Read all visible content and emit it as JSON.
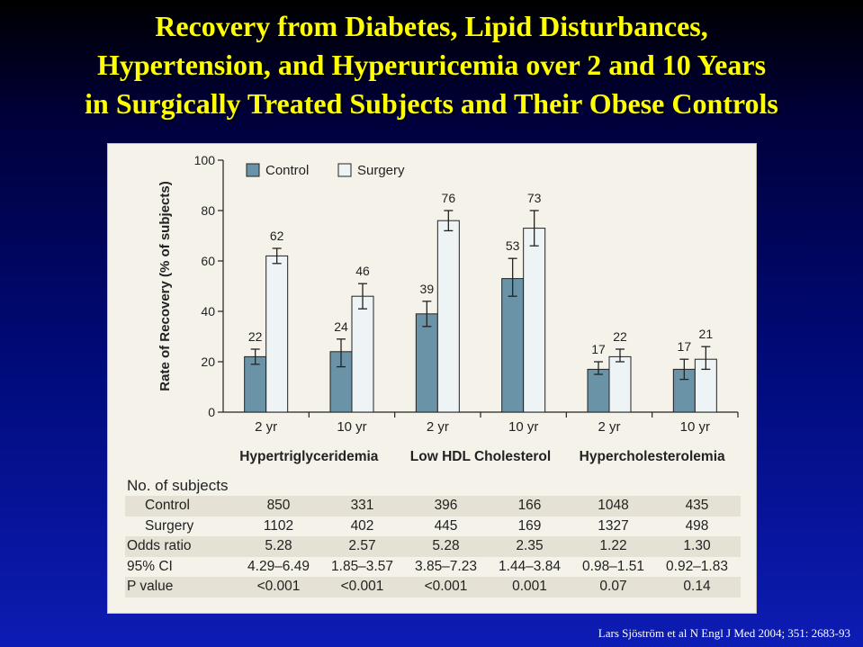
{
  "title_lines": [
    "Recovery from Diabetes, Lipid Disturbances,",
    "Hypertension, and Hyperuricemia over 2 and 10 Years",
    "in Surgically Treated Subjects and Their Obese Controls"
  ],
  "chart_data": {
    "type": "bar",
    "ylabel": "Rate of Recovery (% of subjects)",
    "ylim": [
      0,
      100
    ],
    "yticks": [
      0,
      20,
      40,
      60,
      80,
      100
    ],
    "grid": false,
    "legend_position": "top-left",
    "colors": {
      "control": "#6a93a8",
      "surgery": "#eef3f5",
      "stroke": "#222222"
    },
    "groups": [
      "Hypertriglyceridemia",
      "Low HDL Cholesterol",
      "Hypercholesterolemia"
    ],
    "categories": [
      "2 yr",
      "10 yr",
      "2 yr",
      "10 yr",
      "2 yr",
      "10 yr"
    ],
    "series": [
      {
        "name": "Control",
        "values": [
          22,
          24,
          39,
          53,
          17,
          17
        ],
        "err_low": [
          19,
          18,
          34,
          46,
          15,
          13
        ],
        "err_high": [
          25,
          29,
          44,
          61,
          20,
          21
        ]
      },
      {
        "name": "Surgery",
        "values": [
          62,
          46,
          76,
          73,
          22,
          21
        ],
        "err_low": [
          59,
          41,
          72,
          66,
          20,
          17
        ],
        "err_high": [
          65,
          51,
          80,
          80,
          25,
          26
        ]
      }
    ]
  },
  "table": {
    "header": "No. of subjects",
    "rows": [
      {
        "label": "Control",
        "indent": true,
        "values": [
          "850",
          "331",
          "396",
          "166",
          "1048",
          "435"
        ]
      },
      {
        "label": "Surgery",
        "indent": true,
        "values": [
          "1102",
          "402",
          "445",
          "169",
          "1327",
          "498"
        ]
      },
      {
        "label": "Odds ratio",
        "indent": false,
        "values": [
          "5.28",
          "2.57",
          "5.28",
          "2.35",
          "1.22",
          "1.30"
        ]
      },
      {
        "label": "95% CI",
        "indent": false,
        "values": [
          "4.29–6.49",
          "1.85–3.57",
          "3.85–7.23",
          "1.44–3.84",
          "0.98–1.51",
          "0.92–1.83"
        ]
      },
      {
        "label": "P value",
        "indent": false,
        "values": [
          "<0.001",
          "<0.001",
          "<0.001",
          "0.001",
          "0.07",
          "0.14"
        ]
      }
    ]
  },
  "citation": "Lars Sjöström et al N Engl J Med 2004; 351: 2683-93"
}
